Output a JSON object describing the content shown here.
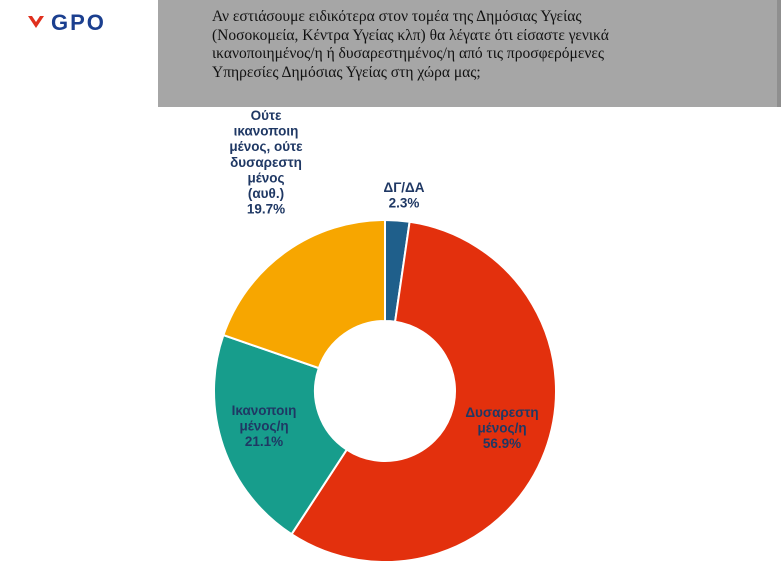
{
  "brand": {
    "logo_text": "GPO",
    "logo_color": "#1b3f8f",
    "logo_mark_color": "#e0301e"
  },
  "question": {
    "lines": [
      "Αν εστιάσουμε ειδικότερα στον τομέα της Δημόσιας Υγείας",
      "(Νοσοκομεία, Κέντρα Υγείας κλπ) θα λέγατε ότι είσαστε γενικά",
      "ικανοποιημένος/η ή δυσαρεστημένος/η από τις προσφερόμενες",
      "Υπηρεσίες Δημόσιας Υγείας στη χώρα μας;"
    ]
  },
  "chart_data": {
    "type": "donut",
    "slices": [
      {
        "label_lines": [
          "ΔΓ/ΔΑ"
        ],
        "value": 2.3,
        "value_text": "2.3%",
        "color": "#1f5f8b",
        "label_color": "#1f3864"
      },
      {
        "label_lines": [
          "Δυσαρεστη",
          "μένος/η"
        ],
        "value": 56.9,
        "value_text": "56.9%",
        "color": "#e3300d",
        "label_color": "#1f3864"
      },
      {
        "label_lines": [
          "Ικανοποιη",
          "μένος/η"
        ],
        "value": 21.1,
        "value_text": "21.1%",
        "color": "#179d8c",
        "label_color": "#1f3864"
      },
      {
        "label_lines": [
          "Ούτε",
          "ικανοποιη",
          "μένος, ούτε",
          "δυσαρεστη",
          "μένος",
          "(αυθ.)"
        ],
        "value": 19.7,
        "value_text": "19.7%",
        "color": "#f7a600",
        "label_color": "#1f3864"
      }
    ]
  }
}
